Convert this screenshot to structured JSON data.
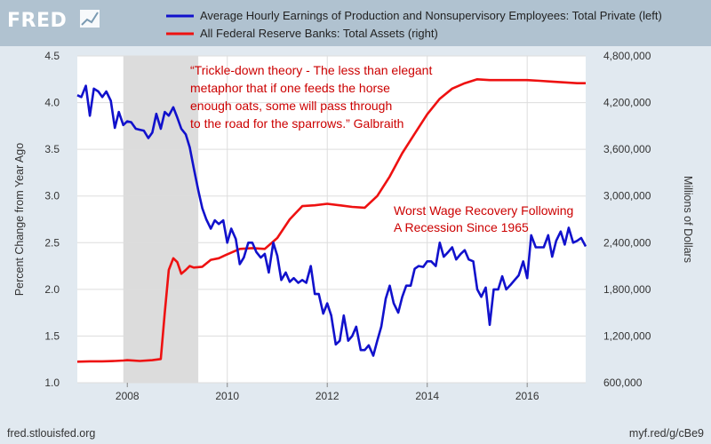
{
  "header": {
    "logo_text": "FRED",
    "logo_icon": "line-chart-icon"
  },
  "footer": {
    "source": "fred.stlouisfed.org",
    "short_link": "myf.red/g/cBe9"
  },
  "colors": {
    "background": "#e1e9f0",
    "plot_area": "#ffffff",
    "header_bar": "#b0c2d0",
    "earnings": "#1111cc",
    "assets": "#ee1111",
    "annotation": "#cc0000",
    "recession": "#dcdcdc"
  },
  "chart_data": {
    "type": "line",
    "title": "",
    "x_ticks": [
      "2008",
      "2010",
      "2012",
      "2014",
      "2016"
    ],
    "xlim": [
      2007.0,
      2017.17
    ],
    "ylabel_left": "Percent Change from Year Ago",
    "ylabel_right": "Millions of Dollars",
    "ylim_left": [
      1.0,
      4.5
    ],
    "ylim_right": [
      600000,
      4800000
    ],
    "left_ticks": [
      "1.0",
      "1.5",
      "2.0",
      "2.5",
      "3.0",
      "3.5",
      "4.0",
      "4.5"
    ],
    "right_ticks": [
      "600,000",
      "1,200,000",
      "1,800,000",
      "2,400,000",
      "3,000,000",
      "3,600,000",
      "4,200,000",
      "4,800,000"
    ],
    "grid": true,
    "legend_position": "top",
    "recession": [
      2007.92,
      2009.42
    ],
    "annotations": [
      {
        "lines": [
          "“Trickle-down theory - The less than elegant",
          "metaphor that if one feeds the horse",
          "enough oats, some will pass through",
          "to the road for the sparrows.” Galbraith"
        ]
      },
      {
        "lines": [
          "Worst Wage Recovery Following",
          "A Recession Since 1965"
        ]
      }
    ],
    "series": [
      {
        "name": "Average Hourly Earnings of Production and Nonsupervisory Employees: Total Private (left)",
        "axis": "left",
        "color": "#1111cc",
        "points": [
          [
            2007.0,
            4.08
          ],
          [
            2007.08,
            4.06
          ],
          [
            2007.17,
            4.18
          ],
          [
            2007.25,
            3.86
          ],
          [
            2007.33,
            4.15
          ],
          [
            2007.42,
            4.12
          ],
          [
            2007.5,
            4.06
          ],
          [
            2007.58,
            4.12
          ],
          [
            2007.67,
            4.02
          ],
          [
            2007.75,
            3.73
          ],
          [
            2007.83,
            3.9
          ],
          [
            2007.92,
            3.76
          ],
          [
            2008.0,
            3.8
          ],
          [
            2008.08,
            3.79
          ],
          [
            2008.17,
            3.72
          ],
          [
            2008.25,
            3.71
          ],
          [
            2008.33,
            3.7
          ],
          [
            2008.42,
            3.62
          ],
          [
            2008.5,
            3.68
          ],
          [
            2008.58,
            3.88
          ],
          [
            2008.67,
            3.72
          ],
          [
            2008.75,
            3.9
          ],
          [
            2008.83,
            3.86
          ],
          [
            2008.92,
            3.95
          ],
          [
            2009.0,
            3.84
          ],
          [
            2009.08,
            3.72
          ],
          [
            2009.17,
            3.66
          ],
          [
            2009.25,
            3.52
          ],
          [
            2009.33,
            3.3
          ],
          [
            2009.42,
            3.06
          ],
          [
            2009.5,
            2.87
          ],
          [
            2009.58,
            2.75
          ],
          [
            2009.67,
            2.65
          ],
          [
            2009.75,
            2.74
          ],
          [
            2009.83,
            2.7
          ],
          [
            2009.92,
            2.74
          ],
          [
            2010.0,
            2.5
          ],
          [
            2010.08,
            2.65
          ],
          [
            2010.17,
            2.54
          ],
          [
            2010.25,
            2.27
          ],
          [
            2010.33,
            2.34
          ],
          [
            2010.42,
            2.5
          ],
          [
            2010.5,
            2.5
          ],
          [
            2010.58,
            2.4
          ],
          [
            2010.67,
            2.34
          ],
          [
            2010.75,
            2.38
          ],
          [
            2010.83,
            2.18
          ],
          [
            2010.92,
            2.5
          ],
          [
            2011.0,
            2.36
          ],
          [
            2011.08,
            2.1
          ],
          [
            2011.17,
            2.18
          ],
          [
            2011.25,
            2.08
          ],
          [
            2011.33,
            2.12
          ],
          [
            2011.42,
            2.07
          ],
          [
            2011.5,
            2.1
          ],
          [
            2011.58,
            2.07
          ],
          [
            2011.67,
            2.25
          ],
          [
            2011.75,
            1.95
          ],
          [
            2011.83,
            1.95
          ],
          [
            2011.92,
            1.74
          ],
          [
            2012.0,
            1.85
          ],
          [
            2012.08,
            1.72
          ],
          [
            2012.17,
            1.41
          ],
          [
            2012.25,
            1.45
          ],
          [
            2012.33,
            1.72
          ],
          [
            2012.42,
            1.45
          ],
          [
            2012.5,
            1.5
          ],
          [
            2012.58,
            1.6
          ],
          [
            2012.67,
            1.35
          ],
          [
            2012.75,
            1.35
          ],
          [
            2012.83,
            1.4
          ],
          [
            2012.92,
            1.29
          ],
          [
            2013.0,
            1.45
          ],
          [
            2013.08,
            1.6
          ],
          [
            2013.17,
            1.9
          ],
          [
            2013.25,
            2.04
          ],
          [
            2013.33,
            1.85
          ],
          [
            2013.42,
            1.75
          ],
          [
            2013.5,
            1.92
          ],
          [
            2013.58,
            2.04
          ],
          [
            2013.67,
            2.04
          ],
          [
            2013.75,
            2.22
          ],
          [
            2013.83,
            2.25
          ],
          [
            2013.92,
            2.24
          ],
          [
            2014.0,
            2.3
          ],
          [
            2014.08,
            2.3
          ],
          [
            2014.17,
            2.25
          ],
          [
            2014.25,
            2.5
          ],
          [
            2014.33,
            2.35
          ],
          [
            2014.42,
            2.4
          ],
          [
            2014.5,
            2.45
          ],
          [
            2014.58,
            2.32
          ],
          [
            2014.67,
            2.38
          ],
          [
            2014.75,
            2.42
          ],
          [
            2014.83,
            2.32
          ],
          [
            2014.92,
            2.3
          ],
          [
            2015.0,
            2.0
          ],
          [
            2015.08,
            1.92
          ],
          [
            2015.17,
            2.02
          ],
          [
            2015.25,
            1.62
          ],
          [
            2015.33,
            2.0
          ],
          [
            2015.42,
            2.0
          ],
          [
            2015.5,
            2.14
          ],
          [
            2015.58,
            2.0
          ],
          [
            2015.67,
            2.05
          ],
          [
            2015.75,
            2.1
          ],
          [
            2015.83,
            2.15
          ],
          [
            2015.92,
            2.3
          ],
          [
            2016.0,
            2.12
          ],
          [
            2016.08,
            2.58
          ],
          [
            2016.17,
            2.45
          ],
          [
            2016.25,
            2.45
          ],
          [
            2016.33,
            2.45
          ],
          [
            2016.42,
            2.58
          ],
          [
            2016.5,
            2.35
          ],
          [
            2016.58,
            2.52
          ],
          [
            2016.67,
            2.62
          ],
          [
            2016.75,
            2.48
          ],
          [
            2016.83,
            2.66
          ],
          [
            2016.92,
            2.5
          ],
          [
            2017.0,
            2.52
          ],
          [
            2017.08,
            2.55
          ],
          [
            2017.17,
            2.46
          ]
        ]
      },
      {
        "name": "All Federal Reserve Banks: Total Assets (right)",
        "axis": "right",
        "color": "#ee1111",
        "points": [
          [
            2007.0,
            870000
          ],
          [
            2007.25,
            875000
          ],
          [
            2007.5,
            875000
          ],
          [
            2007.75,
            880000
          ],
          [
            2007.92,
            885000
          ],
          [
            2008.0,
            890000
          ],
          [
            2008.25,
            880000
          ],
          [
            2008.5,
            890000
          ],
          [
            2008.67,
            905000
          ],
          [
            2008.75,
            1500000
          ],
          [
            2008.83,
            2050000
          ],
          [
            2008.92,
            2200000
          ],
          [
            2009.0,
            2150000
          ],
          [
            2009.08,
            2000000
          ],
          [
            2009.17,
            2050000
          ],
          [
            2009.25,
            2100000
          ],
          [
            2009.33,
            2080000
          ],
          [
            2009.5,
            2090000
          ],
          [
            2009.67,
            2180000
          ],
          [
            2009.83,
            2200000
          ],
          [
            2010.0,
            2250000
          ],
          [
            2010.25,
            2320000
          ],
          [
            2010.5,
            2330000
          ],
          [
            2010.75,
            2320000
          ],
          [
            2011.0,
            2460000
          ],
          [
            2011.25,
            2700000
          ],
          [
            2011.5,
            2870000
          ],
          [
            2011.75,
            2880000
          ],
          [
            2012.0,
            2900000
          ],
          [
            2012.25,
            2880000
          ],
          [
            2012.5,
            2860000
          ],
          [
            2012.75,
            2850000
          ],
          [
            2013.0,
            3000000
          ],
          [
            2013.25,
            3250000
          ],
          [
            2013.5,
            3550000
          ],
          [
            2013.75,
            3800000
          ],
          [
            2014.0,
            4050000
          ],
          [
            2014.25,
            4250000
          ],
          [
            2014.5,
            4380000
          ],
          [
            2014.75,
            4450000
          ],
          [
            2015.0,
            4500000
          ],
          [
            2015.25,
            4490000
          ],
          [
            2015.5,
            4490000
          ],
          [
            2015.75,
            4490000
          ],
          [
            2016.0,
            4490000
          ],
          [
            2016.25,
            4480000
          ],
          [
            2016.5,
            4470000
          ],
          [
            2016.75,
            4460000
          ],
          [
            2017.0,
            4450000
          ],
          [
            2017.17,
            4450000
          ]
        ]
      }
    ]
  }
}
